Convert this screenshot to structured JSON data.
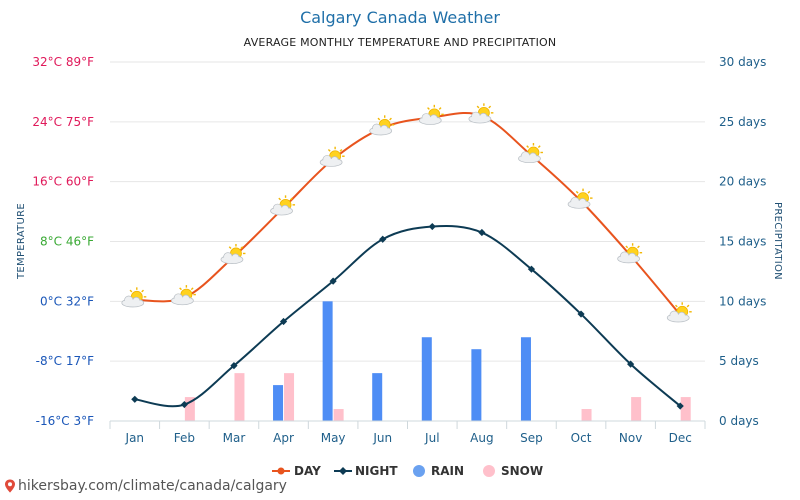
{
  "chart_data": {
    "type": "line",
    "title": "Calgary Canada Weather",
    "subtitle": "AVERAGE MONTHLY TEMPERATURE AND PRECIPITATION",
    "ylabel": "TEMPERATURE",
    "y2label": "PRECIPITATION",
    "categories": [
      "Jan",
      "Feb",
      "Mar",
      "Apr",
      "May",
      "Jun",
      "Jul",
      "Aug",
      "Sep",
      "Oct",
      "Nov",
      "Dec"
    ],
    "y_ticks": [
      {
        "value": 32,
        "label": "32°C 89°F",
        "color": "#e0195a"
      },
      {
        "value": 24,
        "label": "24°C 75°F",
        "color": "#e0195a"
      },
      {
        "value": 16,
        "label": "16°C 60°F",
        "color": "#e0195a"
      },
      {
        "value": 8,
        "label": "8°C 46°F",
        "color": "#3aaa35"
      },
      {
        "value": 0,
        "label": "0°C 32°F",
        "color": "#1a56b8"
      },
      {
        "value": -8,
        "label": "-8°C 17°F",
        "color": "#1a56b8"
      },
      {
        "value": -16,
        "label": "-16°C 3°F",
        "color": "#1a56b8"
      }
    ],
    "y2_ticks": [
      {
        "value": 30,
        "label": "30 days"
      },
      {
        "value": 25,
        "label": "25 days"
      },
      {
        "value": 20,
        "label": "20 days"
      },
      {
        "value": 15,
        "label": "15 days"
      },
      {
        "value": 10,
        "label": "10 days"
      },
      {
        "value": 5,
        "label": "5 days"
      },
      {
        "value": 0,
        "label": "0 days"
      }
    ],
    "ylim": [
      -16,
      32
    ],
    "y2lim": [
      0,
      30
    ],
    "grid": true,
    "legend_position": "bottom-center",
    "series": [
      {
        "name": "DAY",
        "kind": "line",
        "axis": "temperature",
        "color": "#e8541e",
        "values": [
          0.2,
          0.5,
          6.0,
          12.5,
          19.0,
          23.2,
          24.6,
          24.8,
          19.5,
          13.4,
          6.1,
          -1.8
        ]
      },
      {
        "name": "NIGHT",
        "kind": "line",
        "axis": "temperature",
        "color": "#0d3b54",
        "values": [
          -13.1,
          -13.8,
          -8.6,
          -2.7,
          2.7,
          8.3,
          10.0,
          9.2,
          4.3,
          -1.7,
          -8.4,
          -14.0
        ]
      },
      {
        "name": "RAIN",
        "kind": "bar",
        "axis": "precipitation",
        "color": "#4e8df5",
        "legend_color": "#6aa1f0",
        "values": [
          0,
          0,
          0,
          3,
          10,
          4,
          7,
          6,
          7,
          0,
          0,
          0
        ]
      },
      {
        "name": "SNOW",
        "kind": "bar",
        "axis": "precipitation",
        "color": "#ffc0cb",
        "values": [
          0,
          2,
          4,
          4,
          1,
          0,
          0,
          0,
          0,
          1,
          2,
          2
        ]
      }
    ]
  },
  "footer": {
    "text": "hikersbay.com/climate/canada/calgary",
    "pin_color": "#e04a3a"
  }
}
